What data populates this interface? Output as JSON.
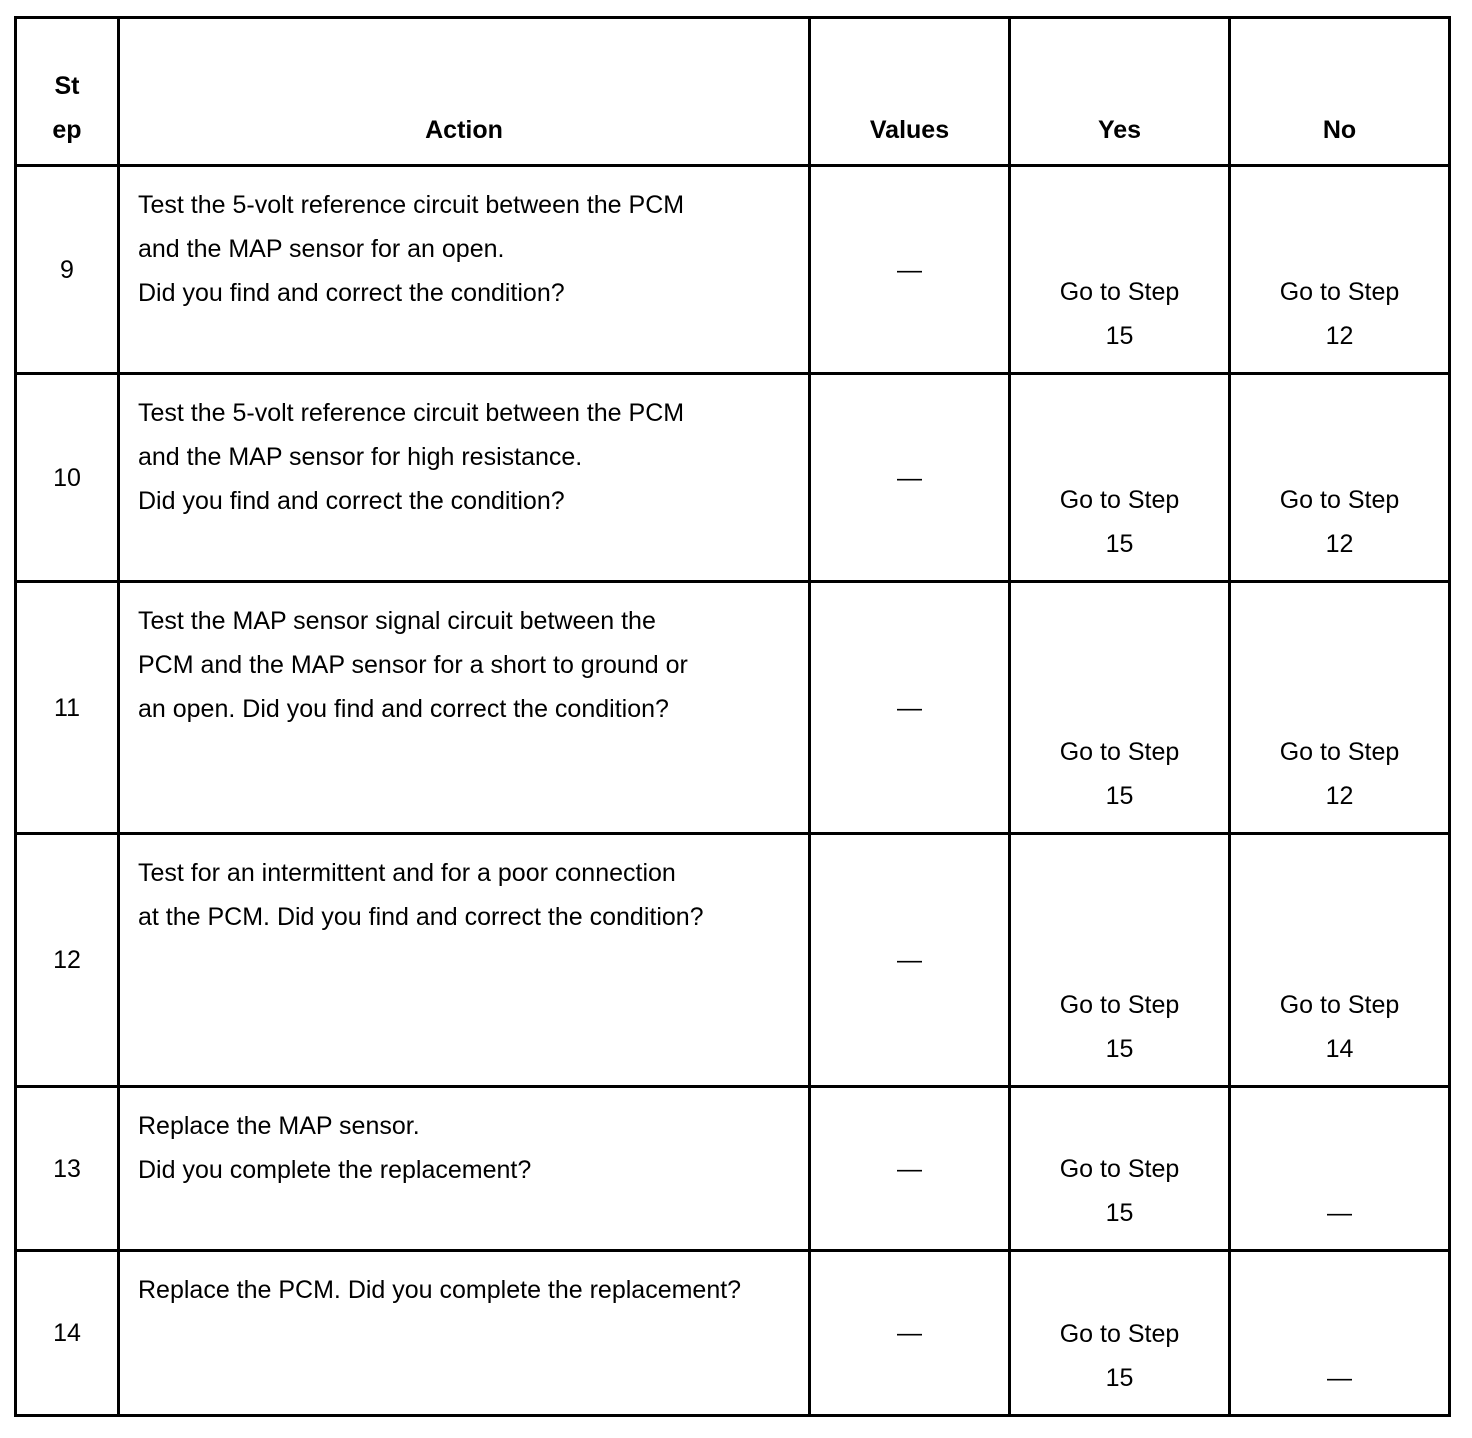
{
  "headers": {
    "step_line1": "St",
    "step_line2": "ep",
    "action": "Action",
    "values": "Values",
    "yes": "Yes",
    "no": "No"
  },
  "rows": [
    {
      "step": "9",
      "action": [
        "Test the 5-volt reference circuit between the PCM",
        "and the MAP sensor for an open.",
        "Did you find and correct the condition?"
      ],
      "values": "—",
      "yes": [
        "Go to Step",
        "15"
      ],
      "no": [
        "Go to Step",
        "12"
      ]
    },
    {
      "step": "10",
      "action": [
        "Test the 5-volt reference circuit between the PCM",
        "and the MAP sensor for high resistance.",
        "Did you find and correct the condition?"
      ],
      "values": "—",
      "yes": [
        "Go to Step",
        "15"
      ],
      "no": [
        "Go to Step",
        "12"
      ]
    },
    {
      "step": "11",
      "action": [
        "Test the MAP sensor signal circuit between the",
        "PCM and the MAP sensor for a short to ground or",
        "an open. Did you find and correct the condition?"
      ],
      "values": "—",
      "yes": [
        "Go to Step",
        "15"
      ],
      "no": [
        "Go to Step",
        "12"
      ]
    },
    {
      "step": "12",
      "action": [
        "Test for an intermittent and for a poor connection",
        "at the PCM. Did you find and correct the condition?"
      ],
      "values": "—",
      "yes": [
        "Go to Step",
        "15"
      ],
      "no": [
        "Go to Step",
        "14"
      ]
    },
    {
      "step": "13",
      "action": [
        "Replace the MAP sensor.",
        "Did you complete the replacement?"
      ],
      "values": "—",
      "yes": [
        "Go to Step",
        "15"
      ],
      "no": [
        "—"
      ]
    },
    {
      "step": "14",
      "action": [
        "Replace the PCM. Did you complete the replacement?"
      ],
      "values": "—",
      "yes": [
        "Go to Step",
        "15"
      ],
      "no": [
        "—"
      ]
    }
  ]
}
